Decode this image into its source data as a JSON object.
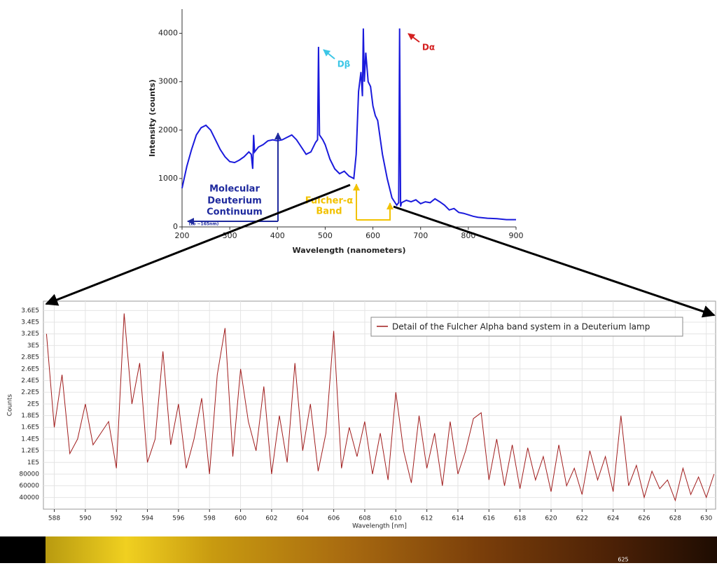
{
  "chart_data": [
    {
      "type": "line",
      "y_label": "Intensity (counts)",
      "x_label": "Wavelength (nanometers)",
      "x": [
        200,
        210,
        220,
        230,
        240,
        250,
        260,
        270,
        280,
        290,
        300,
        310,
        320,
        330,
        340,
        345,
        348,
        350,
        352,
        360,
        370,
        380,
        390,
        400,
        410,
        420,
        430,
        440,
        450,
        460,
        470,
        480,
        484,
        486,
        488,
        495,
        500,
        510,
        520,
        530,
        540,
        550,
        560,
        565,
        570,
        575,
        578,
        580,
        582,
        585,
        590,
        595,
        600,
        605,
        610,
        620,
        630,
        640,
        650,
        654,
        656,
        658,
        660,
        670,
        680,
        690,
        700,
        710,
        720,
        730,
        740,
        750,
        760,
        770,
        780,
        790,
        800,
        810,
        820,
        840,
        860,
        880,
        900
      ],
      "series": [
        {
          "color": "#1a1adc",
          "values": [
            800,
            1250,
            1600,
            1900,
            2050,
            2100,
            2000,
            1800,
            1600,
            1450,
            1350,
            1330,
            1380,
            1450,
            1550,
            1500,
            1200,
            1900,
            1550,
            1650,
            1700,
            1780,
            1800,
            1780,
            1800,
            1850,
            1900,
            1800,
            1650,
            1500,
            1550,
            1750,
            1800,
            3720,
            1900,
            1800,
            1700,
            1400,
            1200,
            1100,
            1150,
            1050,
            1000,
            1500,
            2800,
            3200,
            2700,
            4100,
            3000,
            3600,
            3000,
            2900,
            2500,
            2300,
            2200,
            1500,
            1000,
            600,
            450,
            500,
            4100,
            420,
            500,
            550,
            520,
            560,
            480,
            520,
            500,
            580,
            520,
            450,
            350,
            380,
            300,
            280,
            250,
            220,
            200,
            180,
            170,
            150,
            150
          ]
        }
      ],
      "xlim": [
        200,
        900
      ],
      "ylim": [
        0,
        4500
      ],
      "xticks": [
        200,
        300,
        400,
        500,
        600,
        700,
        800,
        900
      ],
      "yticks": [
        0,
        1000,
        2000,
        3000,
        4000
      ],
      "annotations": [
        "Dβ",
        "Dα",
        "Molecular",
        "Deuterium",
        "Continuum",
        "(to ~165nm)",
        "Fulcher-α",
        "Band"
      ]
    },
    {
      "type": "line",
      "y_label": "Counts",
      "x_label": "Wavelength [nm]",
      "x": [
        587.5,
        588,
        588.5,
        589,
        589.5,
        590,
        590.5,
        591,
        591.5,
        592,
        592.5,
        593,
        593.5,
        594,
        594.5,
        595,
        595.5,
        596,
        596.5,
        597,
        597.5,
        598,
        598.5,
        599,
        599.5,
        600,
        600.5,
        601,
        601.5,
        602,
        602.5,
        603,
        603.5,
        604,
        604.5,
        605,
        605.5,
        606,
        606.5,
        607,
        607.5,
        608,
        608.5,
        609,
        609.5,
        610,
        610.5,
        611,
        611.5,
        612,
        612.5,
        613,
        613.5,
        614,
        614.5,
        615,
        615.5,
        616,
        616.5,
        617,
        617.5,
        618,
        618.5,
        619,
        619.5,
        620,
        620.5,
        621,
        621.5,
        622,
        622.5,
        623,
        623.5,
        624,
        624.5,
        625,
        625.5,
        626,
        626.5,
        627,
        627.5,
        628,
        628.5,
        629,
        629.5,
        630,
        630.5
      ],
      "series": [
        {
          "name": "Detail of the Fulcher Alpha band system in a Deuterium lamp",
          "color": "#a01c1c",
          "values": [
            320000,
            160000,
            250000,
            115000,
            140000,
            200000,
            130000,
            150000,
            170000,
            90000,
            355000,
            200000,
            270000,
            100000,
            140000,
            290000,
            130000,
            200000,
            90000,
            140000,
            210000,
            80000,
            250000,
            330000,
            110000,
            260000,
            170000,
            120000,
            230000,
            80000,
            180000,
            100000,
            270000,
            120000,
            200000,
            85000,
            150000,
            325000,
            90000,
            160000,
            110000,
            170000,
            80000,
            150000,
            70000,
            220000,
            120000,
            65000,
            180000,
            90000,
            150000,
            60000,
            170000,
            80000,
            120000,
            175000,
            185000,
            70000,
            140000,
            60000,
            130000,
            55000,
            125000,
            70000,
            110000,
            50000,
            130000,
            60000,
            90000,
            45000,
            120000,
            70000,
            110000,
            50000,
            180000,
            60000,
            95000,
            40000,
            85000,
            55000,
            70000,
            35000,
            90000,
            45000,
            75000,
            40000,
            80000
          ]
        }
      ],
      "xlim": [
        587.3,
        630.6
      ],
      "ylim": [
        20000,
        376000
      ],
      "xticks": [
        588,
        590,
        592,
        594,
        596,
        598,
        600,
        602,
        604,
        606,
        608,
        610,
        612,
        614,
        616,
        618,
        620,
        622,
        624,
        626,
        628,
        630
      ],
      "yticks": [
        40000,
        60000,
        80000,
        {
          "value": 100000,
          "label": "1E5"
        },
        {
          "value": 120000,
          "label": "1.2E5"
        },
        {
          "value": 140000,
          "label": "1.4E5"
        },
        {
          "value": 160000,
          "label": "1.6E5"
        },
        {
          "value": 180000,
          "label": "1.8E5"
        },
        {
          "value": 200000,
          "label": "2E5"
        },
        {
          "value": 220000,
          "label": "2.2E5"
        },
        {
          "value": 240000,
          "label": "2.4E5"
        },
        {
          "value": 260000,
          "label": "2.6E5"
        },
        {
          "value": 280000,
          "label": "2.8E5"
        },
        {
          "value": 300000,
          "label": "3E5"
        },
        {
          "value": 320000,
          "label": "3.2E5"
        },
        {
          "value": 340000,
          "label": "3.4E5"
        },
        {
          "value": 360000,
          "label": "3.6E5"
        }
      ],
      "grid": true,
      "legend": "top-right"
    }
  ],
  "spectrum_strip": {
    "label": "625"
  }
}
